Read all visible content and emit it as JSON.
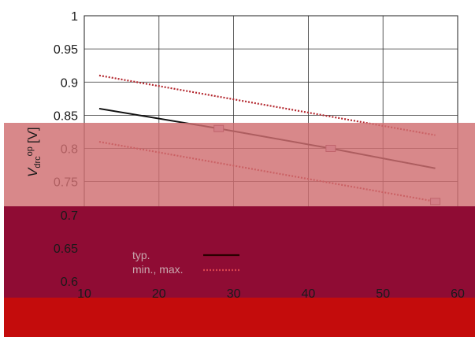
{
  "chart_data": {
    "type": "line",
    "ylabel": "V",
    "ylabel_sub": "drc",
    "ylabel_sup": "op",
    "ylabel_unit": "[V]",
    "xlabel": "",
    "x_ticks": [
      "10",
      "20",
      "30",
      "40",
      "50",
      "60"
    ],
    "y_ticks": [
      "0.6",
      "0.65",
      "0.7",
      "0.75",
      "0.8",
      "0.85",
      "0.9",
      "0.95",
      "1"
    ],
    "xlim": [
      10,
      60
    ],
    "ylim": [
      0.6,
      1.0
    ],
    "grid": true,
    "legend_position": "bottom-left",
    "series": [
      {
        "name": "typ.",
        "style": "solid",
        "color": "#111111",
        "x": [
          12,
          28,
          43,
          57
        ],
        "y": [
          0.86,
          0.83,
          0.8,
          0.77
        ]
      },
      {
        "name": "min., max.",
        "style": "dotted",
        "color": "#b3272e",
        "x": [
          12,
          57
        ],
        "y": [
          0.91,
          0.82
        ]
      },
      {
        "name": "",
        "style": "dotted",
        "color": "#b3272e",
        "x": [
          12,
          57
        ],
        "y": [
          0.81,
          0.72
        ]
      }
    ],
    "markers": [
      {
        "x": 28,
        "y": 0.83
      },
      {
        "x": 43,
        "y": 0.8
      },
      {
        "x": 57,
        "y": 0.72
      }
    ]
  },
  "overlay_colors": {
    "band_light": "#cf6e70",
    "band_mid": "#8f0c34",
    "band_dark": "#c40c0c"
  }
}
